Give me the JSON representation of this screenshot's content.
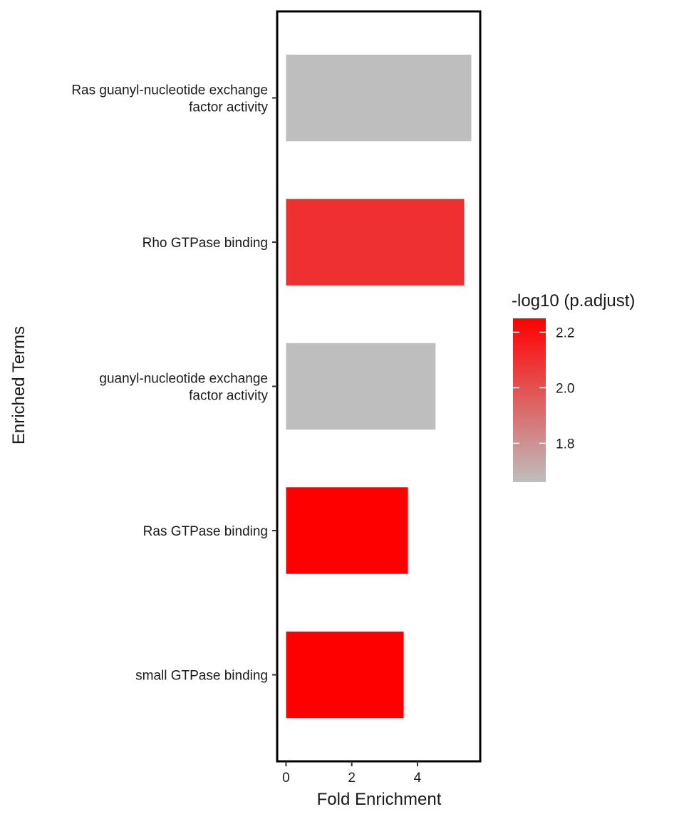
{
  "chart_data": {
    "type": "bar",
    "orientation": "horizontal",
    "categories": [
      [
        "Ras guanyl-nucleotide exchange",
        "factor activity"
      ],
      [
        "Rho GTPase binding"
      ],
      [
        "guanyl-nucleotide exchange",
        "factor activity"
      ],
      [
        "Ras GTPase binding"
      ],
      [
        "small GTPase binding"
      ]
    ],
    "values": [
      5.64,
      5.42,
      4.55,
      3.71,
      3.58
    ],
    "color_values": [
      1.66,
      2.1,
      1.66,
      2.25,
      2.25
    ],
    "xlabel": "Fold Enrichment",
    "ylabel": "Enriched Terms",
    "xlim": [
      -0.27,
      5.91
    ],
    "xticks": [
      0,
      2,
      4
    ],
    "grid": false,
    "legend": {
      "title": "-log10 (p.adjust)",
      "placement": "right",
      "range": [
        1.66,
        2.25
      ],
      "ticks": [
        "1.8",
        "2.0",
        "2.2"
      ],
      "tick_values": [
        1.8,
        2.0,
        2.2
      ],
      "color_low": "#BEBEBE",
      "color_high": "#FF0000"
    }
  }
}
